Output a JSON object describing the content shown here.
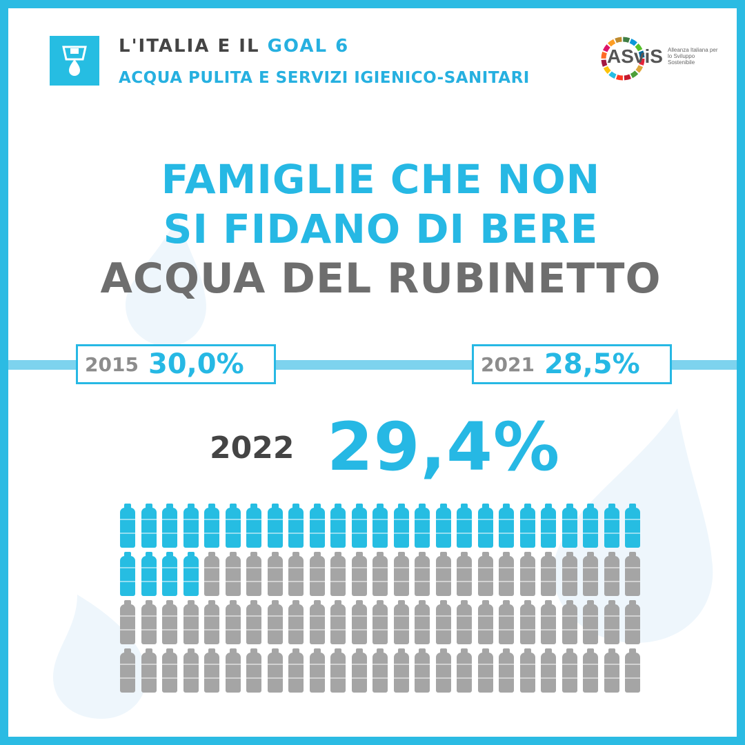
{
  "header": {
    "title_prefix": "L'ITALIA E IL",
    "title_goal": "GOAL 6",
    "subtitle": "ACQUA PULITA E SERVIZI IGIENICO-SANITARI",
    "goal_icon": "water-tap-icon"
  },
  "logo": {
    "name": "ASviS",
    "tagline": "Alleanza Italiana per lo Sviluppo Sostenibile"
  },
  "headline": {
    "line1": "FAMIGLIE CHE NON",
    "line2": "SI FIDANO DI BERE",
    "line3": "ACQUA DEL RUBINETTO"
  },
  "stats": {
    "y2015": {
      "year": "2015",
      "value": "30,0%"
    },
    "y2021": {
      "year": "2021",
      "value": "28,5%"
    },
    "y2022": {
      "year": "2022",
      "value": "29,4%"
    }
  },
  "pictogram": {
    "total": 100,
    "highlighted": 29,
    "icon": "water-bottle-icon"
  },
  "colors": {
    "accent": "#26b8e4",
    "frame": "#2bbbe3",
    "bottle_full": "#26bde2",
    "bottle_empty": "#a5a5a5",
    "headline_gray": "#6e6e6e"
  }
}
